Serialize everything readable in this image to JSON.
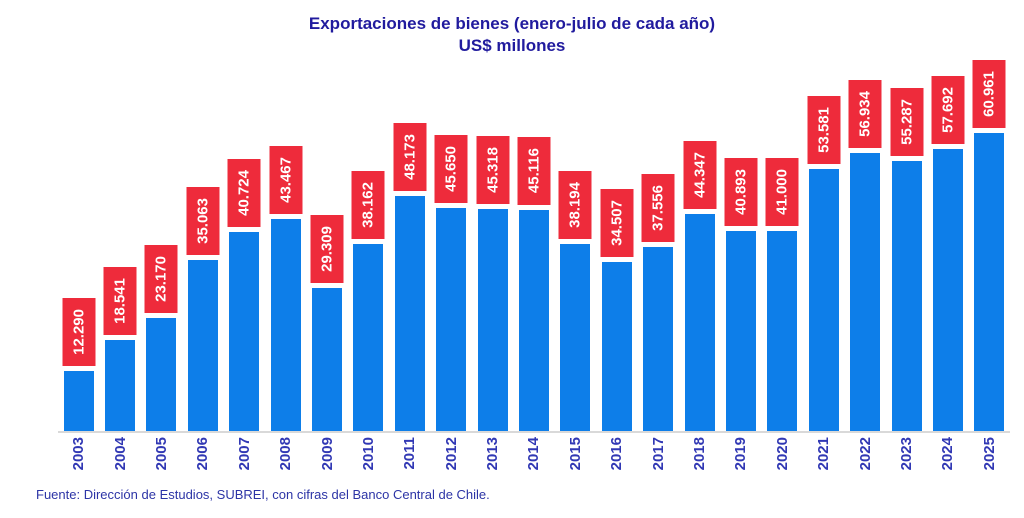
{
  "title": {
    "line1": "Exportaciones de bienes (enero-julio de cada año)",
    "line2": "US$ millones"
  },
  "source": "Fuente: Dirección de Estudios, SUBREI, con cifras del Banco Central de Chile.",
  "colors": {
    "bar": "#0d7ee9",
    "value_label_bg": "#ee2b3b",
    "value_label_text": "#ffffff",
    "title_text": "#211b9e",
    "axis_text": "#3138b4",
    "source_text": "#2c34a6",
    "baseline": "#d9d9d9"
  },
  "chart_data": {
    "type": "bar",
    "title": "Exportaciones de bienes (enero-julio de cada año)",
    "subtitle": "US$ millones",
    "xlabel": "",
    "ylabel": "US$ millones",
    "ylim": [
      0,
      62000
    ],
    "grid": false,
    "legend": false,
    "categories": [
      "2003",
      "2004",
      "2005",
      "2006",
      "2007",
      "2008",
      "2009",
      "2010",
      "2011",
      "2012",
      "2013",
      "2014",
      "2015",
      "2016",
      "2017",
      "2018",
      "2019",
      "2020",
      "2021",
      "2022",
      "2023",
      "2024",
      "2025"
    ],
    "values": [
      12290,
      18541,
      23170,
      35063,
      40724,
      43467,
      29309,
      38162,
      48173,
      45650,
      45318,
      45116,
      38194,
      34507,
      37556,
      44347,
      40893,
      41000,
      53581,
      56934,
      55287,
      57692,
      60961
    ],
    "data_labels": [
      "12.290",
      "18.541",
      "23.170",
      "35.063",
      "40.724",
      "43.467",
      "29.309",
      "38.162",
      "48.173",
      "45.650",
      "45.318",
      "45.116",
      "38.194",
      "34.507",
      "37.556",
      "44.347",
      "40.893",
      "41.000",
      "53.581",
      "56.934",
      "55.287",
      "57.692",
      "60.961"
    ],
    "data_label_position": "rotated 90° in red box above each bar",
    "tick_label_rotation": 90
  }
}
